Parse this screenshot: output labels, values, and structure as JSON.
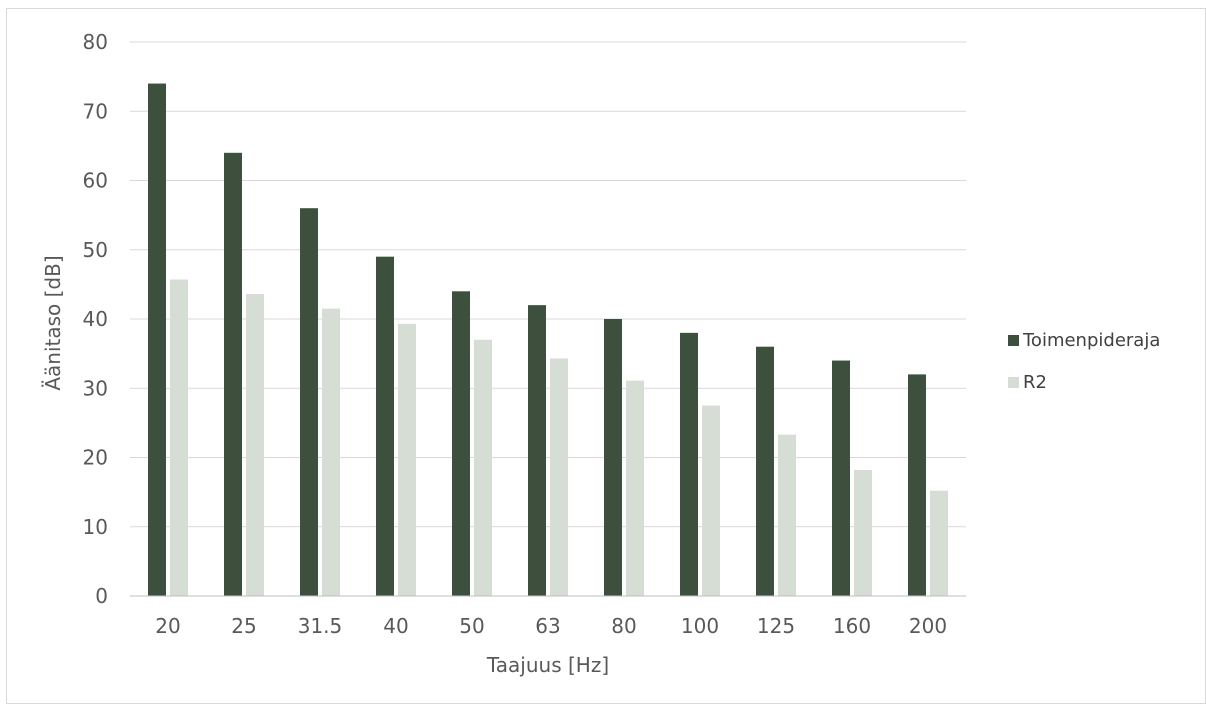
{
  "chart_data": {
    "type": "bar",
    "title": "",
    "xlabel": "Taajuus [Hz]",
    "ylabel": "Äänitaso [dB]",
    "ylim": [
      0,
      80
    ],
    "yticks": [
      0,
      10,
      20,
      30,
      40,
      50,
      60,
      70,
      80
    ],
    "grid": true,
    "legend_position": "right",
    "categories": [
      "20",
      "25",
      "31.5",
      "40",
      "50",
      "63",
      "80",
      "100",
      "125",
      "160",
      "200"
    ],
    "series": [
      {
        "name": "Toimenpideraja",
        "color": "#3d503e",
        "values": [
          74,
          64,
          56,
          49,
          44,
          42,
          40,
          38,
          36,
          34,
          32
        ]
      },
      {
        "name": "R2",
        "color": "#d6ddd5",
        "values": [
          45.7,
          43.6,
          41.5,
          39.3,
          37.0,
          34.3,
          31.1,
          27.5,
          23.3,
          18.2,
          15.2
        ]
      }
    ]
  }
}
